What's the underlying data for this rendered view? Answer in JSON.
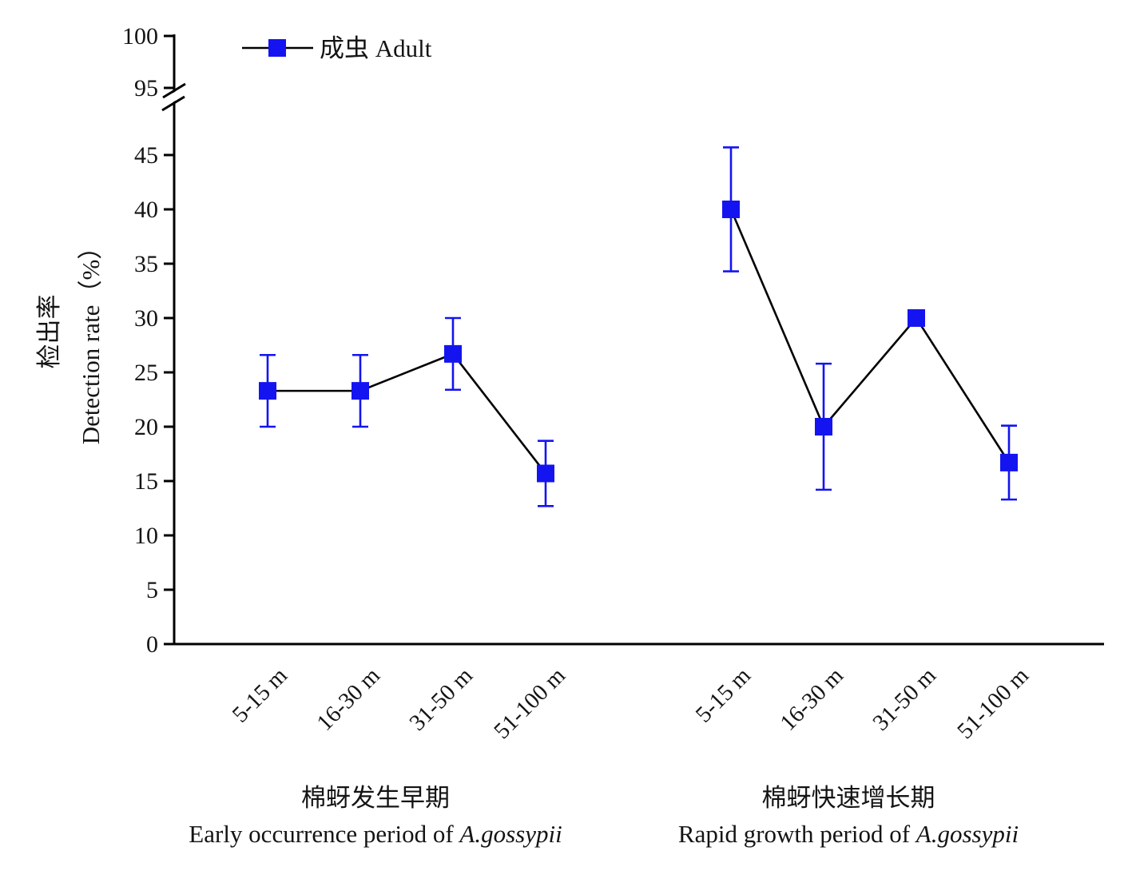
{
  "chart_data": {
    "type": "line",
    "title": "",
    "ylabel_zh": "检出率",
    "ylabel_en": "Detection rate（%）",
    "legend_label": "成虫 Adult",
    "marker": "square",
    "series_color": "#1414f0",
    "axis_color": "#000000",
    "y_ticks": [
      0,
      5,
      10,
      15,
      20,
      25,
      30,
      35,
      40,
      45,
      95,
      100
    ],
    "axis_break_between": [
      45,
      95
    ],
    "ylim_lower_segment": [
      0,
      47.5
    ],
    "ylim_upper_segment": [
      95,
      100
    ],
    "grid": "off",
    "legend_position": "top-left-inside",
    "categories": [
      "5-15 m",
      "16-30 m",
      "31-50 m",
      "51-100 m"
    ],
    "groups": [
      {
        "caption_zh": "棉蚜发生早期",
        "caption_en_prefix": "Early occurrence period of ",
        "caption_en_italic": "A.gossypii",
        "series_name": "成虫 Adult",
        "values": [
          23.3,
          23.3,
          26.7,
          15.7
        ],
        "errors": [
          3.3,
          3.3,
          3.3,
          3.0
        ]
      },
      {
        "caption_zh": "棉蚜快速增长期",
        "caption_en_prefix": "Rapid growth period of ",
        "caption_en_italic": "A.gossypii",
        "series_name": "成虫 Adult",
        "values": [
          40.0,
          20.0,
          30.0,
          16.7
        ],
        "errors": [
          5.7,
          5.8,
          0,
          3.4
        ]
      }
    ]
  }
}
